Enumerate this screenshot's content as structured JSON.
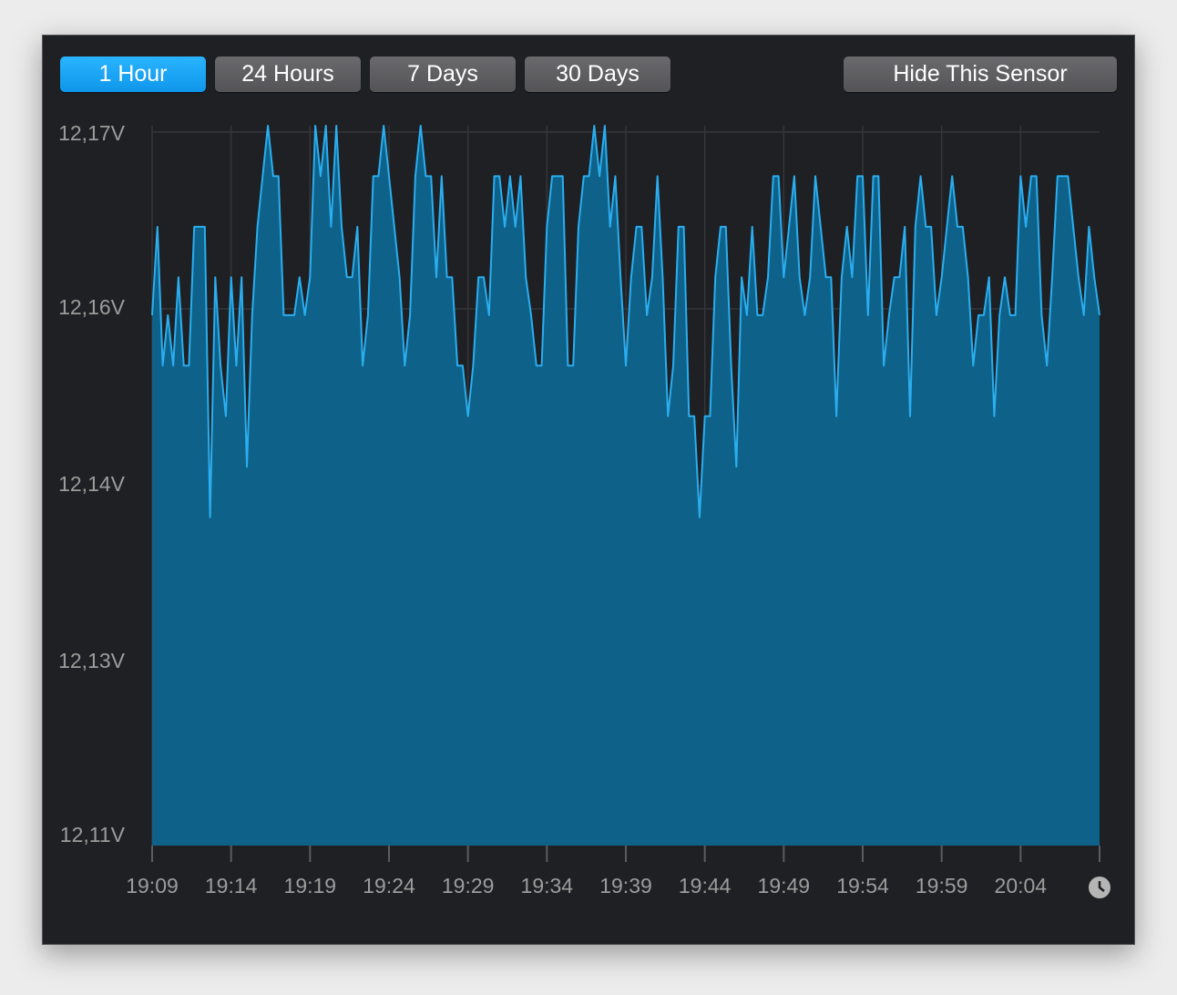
{
  "buttons": [
    {
      "label": "1 Hour",
      "active": true
    },
    {
      "label": "24 Hours",
      "active": false
    },
    {
      "label": "7 Days",
      "active": false
    },
    {
      "label": "30 Days",
      "active": false
    }
  ],
  "hide_button": "Hide This Sensor",
  "chart_data": {
    "type": "area",
    "color": "#2aaef0",
    "fill": "#0e6189",
    "grid": true,
    "ylim": [
      12.113,
      12.17
    ],
    "yticks": [
      {
        "value": 12.1695,
        "label": "12,17V"
      },
      {
        "value": 12.1555,
        "label": "12,16V"
      },
      {
        "value": 12.1415,
        "label": "12,14V"
      },
      {
        "value": 12.1275,
        "label": "12,13V"
      },
      {
        "value": 12.1135,
        "label": "12,11V"
      }
    ],
    "xlim": [
      "19:09:00",
      "20:09:00"
    ],
    "xticks": [
      {
        "value": "19:09:00",
        "label": "19:09"
      },
      {
        "value": "19:14:00",
        "label": "19:14"
      },
      {
        "value": "19:19:00",
        "label": "19:19"
      },
      {
        "value": "19:24:00",
        "label": "19:24"
      },
      {
        "value": "19:29:00",
        "label": "19:29"
      },
      {
        "value": "19:34:00",
        "label": "19:34"
      },
      {
        "value": "19:39:00",
        "label": "19:39"
      },
      {
        "value": "19:44:00",
        "label": "19:44"
      },
      {
        "value": "19:49:00",
        "label": "19:49"
      },
      {
        "value": "19:54:00",
        "label": "19:54"
      },
      {
        "value": "19:59:00",
        "label": "19:59"
      },
      {
        "value": "20:04:00",
        "label": "20:04"
      }
    ],
    "x": [
      "19:09:00",
      "19:09:20",
      "19:09:40",
      "19:10:00",
      "19:10:20",
      "19:10:40",
      "19:11:00",
      "19:11:20",
      "19:11:40",
      "19:12:00",
      "19:12:20",
      "19:12:40",
      "19:13:00",
      "19:13:20",
      "19:13:40",
      "19:14:00",
      "19:14:20",
      "19:14:40",
      "19:15:00",
      "19:15:20",
      "19:15:40",
      "19:16:00",
      "19:16:20",
      "19:16:40",
      "19:17:00",
      "19:17:20",
      "19:17:40",
      "19:18:00",
      "19:18:20",
      "19:18:40",
      "19:19:00",
      "19:19:20",
      "19:19:40",
      "19:20:00",
      "19:20:20",
      "19:20:40",
      "19:21:00",
      "19:21:20",
      "19:21:40",
      "19:22:00",
      "19:22:20",
      "19:22:40",
      "19:23:00",
      "19:23:20",
      "19:23:40",
      "19:24:00",
      "19:24:20",
      "19:24:40",
      "19:25:00",
      "19:25:20",
      "19:25:40",
      "19:26:00",
      "19:26:20",
      "19:26:40",
      "19:27:00",
      "19:27:20",
      "19:27:40",
      "19:28:00",
      "19:28:20",
      "19:28:40",
      "19:29:00",
      "19:29:20",
      "19:29:40",
      "19:30:00",
      "19:30:20",
      "19:30:40",
      "19:31:00",
      "19:31:20",
      "19:31:40",
      "19:32:00",
      "19:32:20",
      "19:32:40",
      "19:33:00",
      "19:33:20",
      "19:33:40",
      "19:34:00",
      "19:34:20",
      "19:34:40",
      "19:35:00",
      "19:35:20",
      "19:35:40",
      "19:36:00",
      "19:36:20",
      "19:36:40",
      "19:37:00",
      "19:37:20",
      "19:37:40",
      "19:38:00",
      "19:38:20",
      "19:38:40",
      "19:39:00",
      "19:39:20",
      "19:39:40",
      "19:40:00",
      "19:40:20",
      "19:40:40",
      "19:41:00",
      "19:41:20",
      "19:41:40",
      "19:42:00",
      "19:42:20",
      "19:42:40",
      "19:43:00",
      "19:43:20",
      "19:43:40",
      "19:44:00",
      "19:44:20",
      "19:44:40",
      "19:45:00",
      "19:45:20",
      "19:45:40",
      "19:46:00",
      "19:46:20",
      "19:46:40",
      "19:47:00",
      "19:47:20",
      "19:47:40",
      "19:48:00",
      "19:48:20",
      "19:48:40",
      "19:49:00",
      "19:49:20",
      "19:49:40",
      "19:50:00",
      "19:50:20",
      "19:50:40",
      "19:51:00",
      "19:51:20",
      "19:51:40",
      "19:52:00",
      "19:52:20",
      "19:52:40",
      "19:53:00",
      "19:53:20",
      "19:53:40",
      "19:54:00",
      "19:54:20",
      "19:54:40",
      "19:55:00",
      "19:55:20",
      "19:55:40",
      "19:56:00",
      "19:56:20",
      "19:56:40",
      "19:57:00",
      "19:57:20",
      "19:57:40",
      "19:58:00",
      "19:58:20",
      "19:58:40",
      "19:59:00",
      "19:59:20",
      "19:59:40",
      "20:00:00",
      "20:00:20",
      "20:00:40",
      "20:01:00",
      "20:01:20",
      "20:01:40",
      "20:02:00",
      "20:02:20",
      "20:02:40",
      "20:03:00",
      "20:03:20",
      "20:03:40",
      "20:04:00",
      "20:04:20",
      "20:04:40",
      "20:05:00",
      "20:05:20",
      "20:05:40",
      "20:06:00",
      "20:06:20",
      "20:06:40",
      "20:07:00",
      "20:07:20",
      "20:07:40",
      "20:08:00",
      "20:08:20",
      "20:08:40",
      "20:09:00"
    ],
    "values": [
      12.155,
      12.162,
      12.151,
      12.155,
      12.151,
      12.158,
      12.151,
      12.151,
      12.162,
      12.162,
      12.162,
      12.139,
      12.158,
      12.151,
      12.147,
      12.158,
      12.151,
      12.158,
      12.143,
      12.155,
      12.162,
      12.166,
      12.17,
      12.166,
      12.166,
      12.155,
      12.155,
      12.155,
      12.158,
      12.155,
      12.158,
      12.17,
      12.166,
      12.17,
      12.162,
      12.17,
      12.162,
      12.158,
      12.158,
      12.162,
      12.151,
      12.155,
      12.166,
      12.166,
      12.17,
      12.166,
      12.162,
      12.158,
      12.151,
      12.155,
      12.166,
      12.17,
      12.166,
      12.166,
      12.158,
      12.166,
      12.158,
      12.158,
      12.151,
      12.151,
      12.147,
      12.151,
      12.158,
      12.158,
      12.155,
      12.166,
      12.166,
      12.162,
      12.166,
      12.162,
      12.166,
      12.158,
      12.155,
      12.151,
      12.151,
      12.162,
      12.166,
      12.166,
      12.166,
      12.151,
      12.151,
      12.162,
      12.166,
      12.166,
      12.17,
      12.166,
      12.17,
      12.162,
      12.166,
      12.158,
      12.151,
      12.158,
      12.162,
      12.162,
      12.155,
      12.158,
      12.166,
      12.158,
      12.147,
      12.151,
      12.162,
      12.162,
      12.147,
      12.147,
      12.139,
      12.147,
      12.147,
      12.158,
      12.162,
      12.162,
      12.151,
      12.143,
      12.158,
      12.155,
      12.162,
      12.155,
      12.155,
      12.158,
      12.166,
      12.166,
      12.158,
      12.162,
      12.166,
      12.158,
      12.155,
      12.158,
      12.166,
      12.162,
      12.158,
      12.158,
      12.147,
      12.158,
      12.162,
      12.158,
      12.166,
      12.166,
      12.155,
      12.166,
      12.166,
      12.151,
      12.155,
      12.158,
      12.158,
      12.162,
      12.147,
      12.162,
      12.166,
      12.162,
      12.162,
      12.155,
      12.158,
      12.162,
      12.166,
      12.162,
      12.162,
      12.158,
      12.151,
      12.155,
      12.155,
      12.158,
      12.147,
      12.155,
      12.158,
      12.155,
      12.155,
      12.166,
      12.162,
      12.166,
      12.166,
      12.155,
      12.151,
      12.158,
      12.166,
      12.166,
      12.166,
      12.162,
      12.158,
      12.155,
      12.162,
      12.158,
      12.155
    ]
  }
}
